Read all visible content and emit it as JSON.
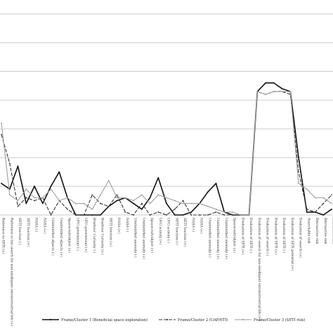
{
  "chart_data": {
    "type": "line",
    "title": "",
    "xlabel": "",
    "ylabel": "",
    "grid": true,
    "legend_position": "bottom",
    "ylim": [
      0,
      7
    ],
    "categories": [
      "Reference to SETI (+)",
      "Reference to the search for non-intelligent extraterrestrial life (+)",
      "SETI function (-)",
      "SETI function (+)",
      "NASA (-)",
      "NASA (+)",
      "Unidentified objects (-)",
      "Unidentified objects (+)",
      "Spacecraft/object (+)",
      "UFO government (-)",
      "UFO government (+)",
      "Bradtour Curiosity (-)",
      "Bradtour Curiosity (+)",
      "SETI function (+)",
      "NASA (+)",
      "NASA (-)",
      "Unidentified anomaly (-)",
      "Unidentified anomaly (+)",
      "Spacecraft/object (+)",
      "UFO activity (+)",
      "UFO activity (-)",
      "SETI function (-)",
      "SETI function (+)",
      "NASA (-)",
      "NASA (+)",
      "Unidentified anomaly (-)",
      "Unidentified anomaly (+)",
      "Unidentified anomaly (+)",
      "Spacecraft/object (+)",
      "Evaluation of SETI (+)",
      "Evaluation of SETI (-)",
      "Evaluation of search for non-intelligent extraterrestrial life (+)",
      "Evaluation of search (-)",
      "Evaluation of SETI (+)",
      "Evaluation of SETI (-)",
      "Evaluation of SETI potential (+)",
      "Evaluation of search (+)",
      "Searchable risk",
      "Retroactive risk",
      "Retroactive risk",
      "Retroactive risk"
    ],
    "series": [
      {
        "name": "Frame/Cluster 1 (Beneficial space exploration)",
        "color": "#111111",
        "dash": "solid",
        "values": [
          1.1,
          0.9,
          1.7,
          0.4,
          1.0,
          0.4,
          1.0,
          1.5,
          0.6,
          0.0,
          0.0,
          0.0,
          0.0,
          0.3,
          0.5,
          0.6,
          0.4,
          0.2,
          0.6,
          1.3,
          0.4,
          0.0,
          0.0,
          0.1,
          0.4,
          0.8,
          1.1,
          0.1,
          0.0,
          0.0,
          0.0,
          4.3,
          4.6,
          4.6,
          4.4,
          4.3,
          2.0,
          0.1,
          0.1,
          0.0,
          0.2
        ]
      },
      {
        "name": "Frame/Cluster 2 (UAP/ETI)",
        "color": "#333333",
        "dash": "5 2",
        "values": [
          2.8,
          1.8,
          0.3,
          0.6,
          0.5,
          0.6,
          0.0,
          0.5,
          0.2,
          0.0,
          0.0,
          0.7,
          0.4,
          0.3,
          0.7,
          0.1,
          0.0,
          0.4,
          0.0,
          0.1,
          0.0,
          0.2,
          0.5,
          0.0,
          0.0,
          0.0,
          0.1,
          0.0,
          0.0,
          0.0,
          0.0,
          4.3,
          4.2,
          4.3,
          4.3,
          4.2,
          1.5,
          0.2,
          0.1,
          0.4,
          0.7
        ]
      },
      {
        "name": "Frame/Cluster 3 (SETI risk)",
        "color": "#9e9e9e",
        "dash": "solid",
        "values": [
          3.2,
          0.7,
          0.5,
          0.9,
          0.6,
          0.6,
          0.9,
          0.5,
          0.6,
          0.4,
          0.4,
          0.2,
          0.7,
          1.2,
          0.6,
          0.6,
          0.5,
          0.7,
          0.4,
          0.7,
          0.6,
          0.5,
          0.4,
          0.4,
          0.4,
          0.3,
          0.2,
          0.1,
          0.1,
          0.0,
          0.0,
          4.3,
          4.2,
          4.3,
          4.3,
          4.3,
          1.1,
          0.9,
          0.6,
          0.6,
          0.4
        ]
      }
    ]
  }
}
